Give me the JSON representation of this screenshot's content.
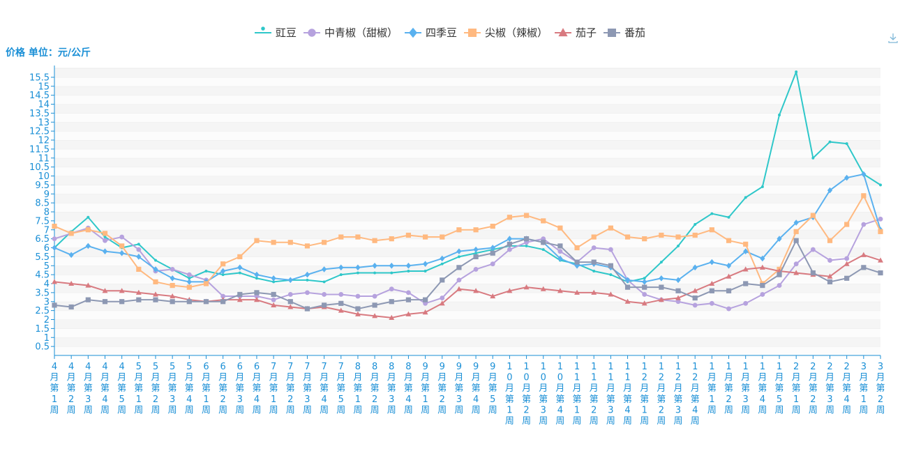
{
  "toolbar": {
    "download_icon": "download-icon"
  },
  "chart_data": {
    "type": "line",
    "ylabel": "价格 单位：元/公斤",
    "ylim": [
      0,
      16
    ],
    "ytick_step": 0.5,
    "yticks": [
      "0.5",
      "1",
      "1.5",
      "2",
      "2.5",
      "3",
      "3.5",
      "4",
      "4.5",
      "5",
      "5.5",
      "6",
      "6.5",
      "7",
      "7.5",
      "8",
      "8.5",
      "9",
      "9.5",
      "10",
      "10.5",
      "11",
      "11.5",
      "12",
      "12.5",
      "13",
      "13.5",
      "14",
      "14.5",
      "15",
      "15.5"
    ],
    "legend_position": "top-center",
    "categories": [
      "4月第1周",
      "4月第2周",
      "4月第3周",
      "4月第4周",
      "4月第5周",
      "5月第1周",
      "5月第2周",
      "5月第3周",
      "5月第4周",
      "6月第1周",
      "6月第2周",
      "6月第3周",
      "6月第4周",
      "7月第1周",
      "7月第2周",
      "7月第3周",
      "7月第4周",
      "7月第5周",
      "8月第1周",
      "8月第2周",
      "8月第3周",
      "8月第4周",
      "9月第1周",
      "9月第2周",
      "9月第3周",
      "9月第4周",
      "9月第5周",
      "10月第1周",
      "10月第2周",
      "10月第3周",
      "10月第4周",
      "11月第1周",
      "11月第2周",
      "11月第3周",
      "11月第4周",
      "12月第1周",
      "12月第2周",
      "12月第3周",
      "12月第4周",
      "1月第1周",
      "1月第2周",
      "1月第3周",
      "1月第4周",
      "1月第5周",
      "2月第1周",
      "2月第2周",
      "2月第3周",
      "2月第4周",
      "3月第1周",
      "3月第2周"
    ],
    "series": [
      {
        "name": "豇豆",
        "color": "#2ec7c9",
        "marker": "pin",
        "values": [
          6.0,
          6.9,
          7.7,
          6.6,
          6.0,
          6.2,
          5.3,
          4.8,
          4.3,
          4.7,
          4.5,
          4.6,
          4.3,
          4.1,
          4.2,
          4.2,
          4.1,
          4.5,
          4.6,
          4.6,
          4.6,
          4.7,
          4.7,
          5.1,
          5.5,
          5.7,
          5.9,
          6.1,
          6.1,
          5.9,
          5.3,
          5.1,
          4.7,
          4.5,
          4.1,
          4.3,
          5.2,
          6.1,
          7.3,
          7.9,
          7.7,
          8.8,
          9.4,
          13.4,
          15.8,
          11.0,
          11.9,
          11.8,
          10.1,
          9.5
        ]
      },
      {
        "name": "中青椒（甜椒）",
        "color": "#b6a2de",
        "marker": "circle",
        "values": [
          6.5,
          6.8,
          7.1,
          6.4,
          6.6,
          5.9,
          4.7,
          4.8,
          4.5,
          4.2,
          3.3,
          3.3,
          3.3,
          3.1,
          3.4,
          3.5,
          3.4,
          3.4,
          3.3,
          3.3,
          3.7,
          3.5,
          2.9,
          3.2,
          4.2,
          4.8,
          5.1,
          5.9,
          6.3,
          6.5,
          5.8,
          5.2,
          6.0,
          5.9,
          4.2,
          3.4,
          3.1,
          3.0,
          2.8,
          2.9,
          2.6,
          2.9,
          3.4,
          3.9,
          5.1,
          5.9,
          5.3,
          5.4,
          7.3,
          7.6
        ]
      },
      {
        "name": "四季豆",
        "color": "#5ab1ef",
        "marker": "diamond",
        "values": [
          6.0,
          5.6,
          6.1,
          5.8,
          5.7,
          5.5,
          4.8,
          4.3,
          4.1,
          4.1,
          4.7,
          4.9,
          4.5,
          4.3,
          4.2,
          4.5,
          4.8,
          4.9,
          4.9,
          5.0,
          5.0,
          5.0,
          5.1,
          5.4,
          5.8,
          5.9,
          6.0,
          6.5,
          6.5,
          6.3,
          5.4,
          5.0,
          5.1,
          4.9,
          4.2,
          4.1,
          4.3,
          4.2,
          4.9,
          5.2,
          5.0,
          5.8,
          5.4,
          6.5,
          7.4,
          7.7,
          9.2,
          9.9,
          10.1,
          7.0
        ]
      },
      {
        "name": "尖椒（辣椒）",
        "color": "#ffb980",
        "marker": "square",
        "values": [
          7.2,
          6.8,
          7.0,
          6.8,
          6.1,
          4.8,
          4.1,
          3.9,
          3.8,
          4.0,
          5.1,
          5.5,
          6.4,
          6.3,
          6.3,
          6.1,
          6.3,
          6.6,
          6.6,
          6.4,
          6.5,
          6.7,
          6.6,
          6.6,
          7.0,
          7.0,
          7.2,
          7.7,
          7.8,
          7.5,
          7.1,
          6.0,
          6.6,
          7.1,
          6.6,
          6.5,
          6.7,
          6.6,
          6.7,
          7.0,
          6.4,
          6.2,
          4.0,
          4.8,
          6.9,
          7.8,
          6.4,
          7.3,
          8.9,
          6.9
        ]
      },
      {
        "name": "茄子",
        "color": "#d87a80",
        "marker": "triangle",
        "values": [
          4.1,
          4.0,
          3.9,
          3.6,
          3.6,
          3.5,
          3.4,
          3.3,
          3.1,
          3.0,
          3.1,
          3.1,
          3.1,
          2.8,
          2.7,
          2.6,
          2.7,
          2.5,
          2.3,
          2.2,
          2.1,
          2.3,
          2.4,
          2.9,
          3.7,
          3.6,
          3.3,
          3.6,
          3.8,
          3.7,
          3.6,
          3.5,
          3.5,
          3.4,
          3.0,
          2.9,
          3.1,
          3.2,
          3.6,
          4.0,
          4.4,
          4.8,
          4.9,
          4.7,
          4.6,
          4.5,
          4.4,
          5.1,
          5.6,
          5.3
        ]
      },
      {
        "name": "番茄",
        "color": "#8d98b3",
        "marker": "square",
        "values": [
          2.8,
          2.7,
          3.1,
          3.0,
          3.0,
          3.1,
          3.1,
          3.0,
          3.0,
          3.0,
          3.0,
          3.4,
          3.5,
          3.4,
          3.0,
          2.6,
          2.8,
          2.9,
          2.6,
          2.8,
          3.0,
          3.1,
          3.1,
          4.2,
          4.9,
          5.5,
          5.7,
          6.2,
          6.5,
          6.3,
          6.1,
          5.2,
          5.2,
          5.0,
          3.8,
          3.8,
          3.8,
          3.6,
          3.2,
          3.6,
          3.6,
          4.0,
          3.9,
          4.5,
          6.4,
          4.6,
          4.1,
          4.3,
          4.9,
          4.6
        ]
      }
    ]
  }
}
